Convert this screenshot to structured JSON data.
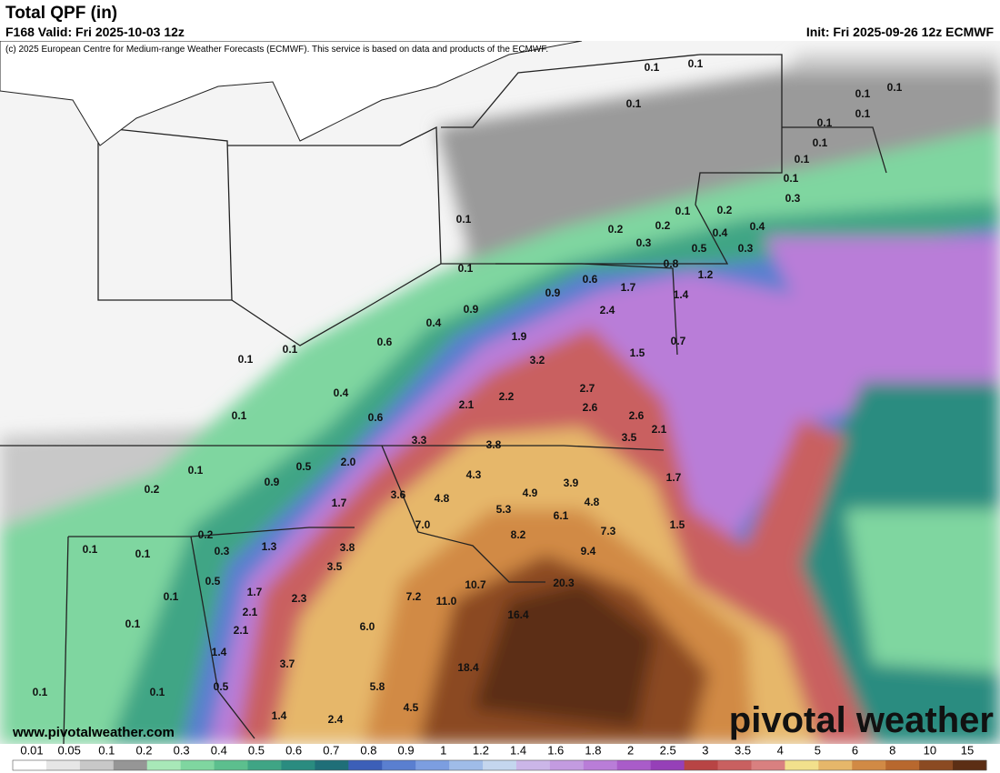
{
  "header": {
    "title": "Total QPF (in)",
    "valid": "F168 Valid: Fri 2025-10-03 12z",
    "init": "Init: Fri 2025-09-26 12z ECMWF",
    "credit": "(c) 2025 European Centre for Medium-range Weather Forecasts (ECMWF). This service is based on data and products of the ECMWF."
  },
  "map": {
    "labels": [
      "0.1",
      "0.1",
      "0.1",
      "0.1",
      "0.1",
      "0.1",
      "0.1",
      "0.1",
      "0.1",
      "0.1",
      "0.3",
      "0.1",
      "0.2",
      "0.2",
      "0.3",
      "0.1",
      "0.2",
      "0.1",
      "0.4",
      "0.5",
      "0.4",
      "0.3",
      "0.8",
      "1.2",
      "0.6",
      "0.9",
      "1.7",
      "1.4",
      "0.9",
      "0.4",
      "2.4",
      "0.6",
      "1.9",
      "0.1",
      "0.1",
      "0.7",
      "1.5",
      "3.2",
      "0.4",
      "2.7",
      "2.2",
      "2.1",
      "2.6",
      "0.1",
      "0.6",
      "2.6",
      "2.1",
      "3.3",
      "3.8",
      "3.5",
      "0.1",
      "2.0",
      "0.5",
      "4.3",
      "0.9",
      "3.9",
      "1.7",
      "0.2",
      "3.6",
      "4.8",
      "4.9",
      "1.7",
      "4.8",
      "5.3",
      "6.1",
      "7.0",
      "1.5",
      "0.2",
      "7.3",
      "8.2",
      "1.3",
      "3.8",
      "0.3",
      "0.1",
      "0.1",
      "9.4",
      "3.5",
      "0.5",
      "10.7",
      "20.3",
      "1.7",
      "7.2",
      "11.0",
      "0.1",
      "2.3",
      "2.1",
      "16.4",
      "0.1",
      "2.1",
      "6.0",
      "1.4",
      "3.7",
      "18.4",
      "0.5",
      "5.8",
      "0.1",
      "0.1",
      "4.5",
      "1.4",
      "2.4"
    ],
    "website": "www.pivotalweather.com",
    "logo": "pivotal weather"
  },
  "legend": {
    "labels": [
      "0.01",
      "0.05",
      "0.1",
      "0.2",
      "0.3",
      "0.4",
      "0.5",
      "0.6",
      "0.7",
      "0.8",
      "0.9",
      "1",
      "1.2",
      "1.4",
      "1.6",
      "1.8",
      "2",
      "2.5",
      "3",
      "3.5",
      "4",
      "5",
      "6",
      "8",
      "10",
      "15"
    ],
    "colors": [
      "#ffffff",
      "#e6e6e6",
      "#c8c8c8",
      "#969696",
      "#a8e8b8",
      "#7fd6a0",
      "#5cbf8e",
      "#3fa585",
      "#2a8c80",
      "#1f6f78",
      "#3c5fb8",
      "#5a7fd0",
      "#7c9ee0",
      "#9fbce8",
      "#c4d6ee",
      "#cbb6e8",
      "#c39be0",
      "#b97dd8",
      "#a95cc9",
      "#9640b8",
      "#b84444",
      "#c96060",
      "#d98080",
      "#f2e08c",
      "#e6b76a",
      "#d18a45",
      "#b8682e",
      "#8b4a22",
      "#5c2e14"
    ]
  }
}
